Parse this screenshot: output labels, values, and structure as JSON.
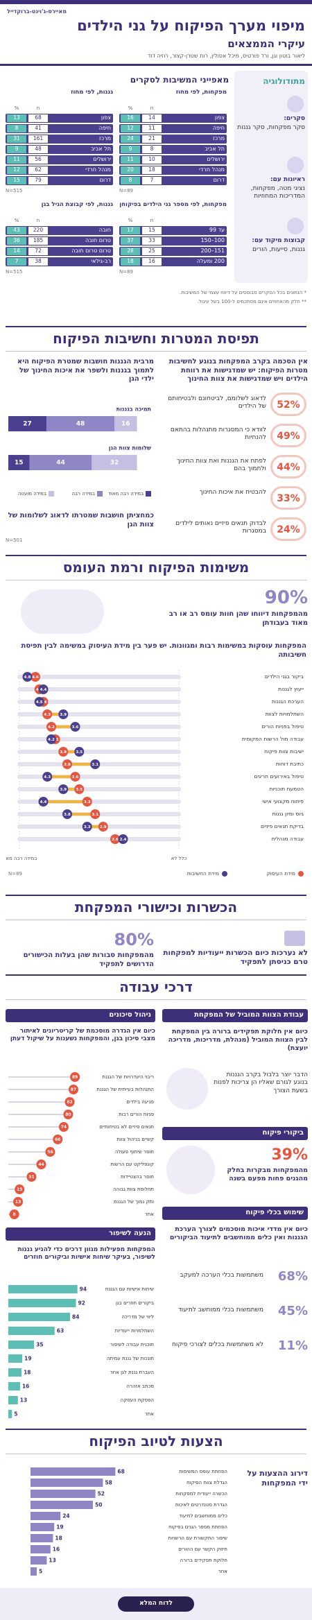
{
  "header": {
    "logo": "מאיירס-ג'וינט-ברוקדייל",
    "title": "מיפוי מערך הפיקוח על גני הילדים",
    "subtitle": "עיקרי הממצאים",
    "authors": "ליאור בוטון וגן, ורד פורטיס, מיכל אסולין, רות שטרן-קצור, רוזיה דוד"
  },
  "methodology": {
    "title": "מתודולוגיה",
    "items": [
      {
        "label": "סקרים:",
        "text": "סקר מפקחות, סקר גננות"
      },
      {
        "label": "ראיונות עם:",
        "text": "נציגי מטה, מפקחות, המדריכות המחוזיות"
      },
      {
        "label": "קבוצות מיקוד עם:",
        "text": "גננות, סייעות, הורים"
      }
    ]
  },
  "respondents": {
    "title": "מאפייני המשיבות לסקרים",
    "columns": [
      "n",
      "%"
    ],
    "tables": [
      {
        "title": "מפקחות, לפי מחוז",
        "rows": [
          [
            "צפון",
            14,
            16
          ],
          [
            "חיפה",
            11,
            12
          ],
          [
            "מרכז",
            21,
            24
          ],
          [
            "תל אביב",
            8,
            9
          ],
          [
            "ירושלים",
            10,
            11
          ],
          [
            "מנהל חרדי",
            18,
            20
          ],
          [
            "דרום",
            7,
            8
          ]
        ],
        "note": "N=89"
      },
      {
        "title": "גננות, לפי מחוז",
        "rows": [
          [
            "צפון",
            68,
            13
          ],
          [
            "חיפה",
            41,
            8
          ],
          [
            "מרכז",
            161,
            31
          ],
          [
            "תל אביב",
            48,
            9
          ],
          [
            "ירושלים",
            56,
            11
          ],
          [
            "מנהל חרדי",
            62,
            12
          ],
          [
            "דרום",
            79,
            15
          ]
        ],
        "note": "N=515"
      },
      {
        "title": "מפקחות, לפי מספר גני הילדים בפיקוחן",
        "rows": [
          [
            "עד 99",
            15,
            17
          ],
          [
            "100–150",
            33,
            37
          ],
          [
            "151–200",
            25,
            28
          ],
          [
            "200 ומעלה",
            16,
            18
          ]
        ],
        "note": "N=89"
      },
      {
        "title": "גננות, לפי קבוצת הגיל בגן",
        "rows": [
          [
            "חובה",
            220,
            43
          ],
          [
            "טרום חובה",
            185,
            36
          ],
          [
            "טרום טרום חובה",
            72,
            14
          ],
          [
            "רב-גילאי",
            38,
            7
          ]
        ],
        "note": "N=515"
      }
    ]
  },
  "footnotes": [
    "* הנתונים בכל הסקרים מבוססים על דיווח עצמי של המשיבות.",
    "** חלק מהאחוזים אינם מסתכמים ל-100 בשל עיגול."
  ],
  "goals": {
    "title": "תפיסת המטרות וחשיבות הפיקוח",
    "supervisors": {
      "intro": "אין הסכמה בקרב המפקחות בנוגע לחשיבות מטרות הפיקוח: יש שמדגישות את רווחת הילדים ויש שמדגישות את צוות החינוך",
      "items": [
        {
          "value": "52%",
          "text": "לדאוג לשלומם, לביטחונם ולבטיחותם של הילדים"
        },
        {
          "value": "49%",
          "text": "לוודא כי המסגרות מתנהלות בהתאם להנחיות"
        },
        {
          "value": "44%",
          "text": "לפתח את הגננות ואת צוות החינוך ולתמוך בהם"
        },
        {
          "value": "33%",
          "text": "להבטיח את איכות החינוך"
        },
        {
          "value": "24%",
          "text": "לבדוק תנאים פיזיים נאותים לילדים במסגרות"
        }
      ]
    },
    "teachers": {
      "intro": "מרבית הגננות חושבות שמטרת הפיקוח היא לתמוך בגננות ולשפר את איכות החינוך של ילדי הגן",
      "chart": {
        "type": "stacked-bar",
        "categories": [
          "תמיכה בגננות",
          "שלומות צוות הגן"
        ],
        "series": [
          {
            "name": "במידה רבה מאוד",
            "color": "#4b3f8f",
            "values": [
              27,
              15
            ]
          },
          {
            "name": "במידה רבה",
            "color": "#8f86c6",
            "values": [
              48,
              44
            ]
          },
          {
            "name": "במידה מועטה",
            "color": "#c4bfe3",
            "values": [
              16,
              32
            ]
          }
        ],
        "xlim": [
          0,
          100
        ],
        "note": "N=501"
      },
      "text2": "כמחציתן חושבות שמטרתו לדאוג לשלומות של צוות הגן"
    }
  },
  "workload": {
    "title": "משימות הפיקוח ורמת העומס",
    "stat": {
      "value": "90%",
      "text": "מהמפקחות דיווחו שהן חוות עומס רב או רב מאוד בעבודתן"
    },
    "intro": "המפקחות עוסקות במשימות רבות ומגוונות. יש פער בין מידת העיסוק במשימה לבין תפיסת חשיבותה",
    "chart": {
      "type": "dumbbell",
      "categories": [
        "ביקור בגני הילדים",
        "ייעוץ לגננות",
        "הערכת הגננות",
        "השתלמויות לצוות",
        "טיפול בפניות הורים",
        "עבודה מול הרשות המקומית",
        "ישיבות צוות פיקוח",
        "כתיבת דוחות",
        "טיפול באירועים חריגים",
        "הטמעת תוכניות",
        "פיתוח מקצועי אישי",
        "גיוס ומיון גננות",
        "בדיקת תנאים פיזיים",
        "עבודה מנהלית"
      ],
      "series": [
        {
          "name": "מידת העיסוק",
          "color": "#e8553f",
          "values": [
            4.6,
            4.5,
            4.4,
            4.3,
            4.2,
            4.1,
            3.9,
            3.8,
            3.6,
            3.5,
            3.3,
            3.1,
            2.9,
            2.6
          ]
        },
        {
          "name": "מידת החשיבות",
          "color": "#4b3f8f",
          "values": [
            4.8,
            4.4,
            4.5,
            3.9,
            3.6,
            4.2,
            3.5,
            3.1,
            4.3,
            3.9,
            4.4,
            3.8,
            3.3,
            2.4
          ]
        }
      ],
      "xlim": [
        1,
        5
      ],
      "xticks": [
        {
          "value": 1,
          "label": "כלל לא"
        },
        {
          "value": 5,
          "label": "במידה רבה מאוד"
        }
      ],
      "note": "N=89"
    }
  },
  "training": {
    "title": "הכשרות וכישורי המפקחת",
    "text": "לא נערכות כיום הכשרות ייעודיות למפקחות טרם כניסתן לתפקיד",
    "stat": {
      "value": "80%",
      "text": "מהמפקחות סבורות שהן בעלות הכישורים הדרושים לתפקיד"
    }
  },
  "methods": {
    "title": "דרכי עבודה",
    "team": {
      "heading": "עבודת הצוות המוביל של המפקחת",
      "text": "כיום אין חלוקת תפקידים ברורה בין המפקחת לבין הצוות המוביל (מנהלת, מדריכות, מדריכה יועצת)",
      "text2": "הדבר יוצר בלבול בקרב הגננות בנוגע לגורם שאליו הן צריכות לפנות בשעת הצורך"
    },
    "visits": {
      "heading": "ביקורי פיקוח",
      "value": "39%",
      "text": "מהמפקחות מבקרות בחלק מהגנים פחות מפעם בשנה"
    },
    "tools": {
      "heading": "שימוש בכלי פיקוח",
      "text": "כיום אין מדדי איכות מוסכמים לצורך הערכת הגננות ואין כלים ממוחשבים לתיעוד הביקורים",
      "stats": [
        {
          "value": "68%",
          "text": "משתמשות בכלי הערכה למעקב"
        },
        {
          "value": "45%",
          "text": "משתמשות בכלי ממוחשב לתיעוד"
        },
        {
          "value": "11%",
          "text": "לא משתמשות בכלים לצורכי פיקוח"
        }
      ]
    },
    "risk": {
      "heading": "ניהול סיכונים",
      "text": "כיום אין הגדרה מוסכמת של קריטריונים לאיתור מצבי סיכון בגן, והמפקחות נשענות על שיקול דעתן",
      "chart": {
        "type": "lollipop",
        "categories": [
          "ריבוי היעדרויות של הגננת",
          "התנהלות בעייתית של הגננת",
          "פגיעה בילדים",
          "פניות הורים רבות",
          "תנאים פיזיים לא בטיחותיים",
          "קשיים בניהול צוות",
          "חוסר שיתוף פעולה",
          "קונפליקט עם הרשות",
          "חוסר בהצטיידות",
          "תחלופת צוות גבוהה",
          "ותק נמוך של הגננת",
          "אחר"
        ],
        "values": [
          89,
          87,
          82,
          80,
          74,
          66,
          56,
          44,
          31,
          15,
          13,
          8
        ],
        "color": "#e8553f",
        "xlim": [
          0,
          100
        ]
      }
    },
    "improvement": {
      "heading": "הנעה לשיפור",
      "text": "המפקחות מפעילות מגוון דרכים כדי להניע גננות לשיפור, בעיקר שיחות אישיות וביקורים חוזרים",
      "chart": {
        "type": "bar",
        "categories": [
          "שיחות אישיות עם הגננת",
          "ביקורים חוזרים בגן",
          "ליווי של מדריכה",
          "השתלמויות ייעודיות",
          "תוכנית עבודה לשיפור",
          "חונכות של גננת עמיתה",
          "העברת גננת לגן אחר",
          "מכתב אזהרה",
          "הפסקת העסקה",
          "אחר"
        ],
        "values": [
          94,
          92,
          84,
          63,
          35,
          19,
          18,
          16,
          13,
          5
        ],
        "color": "#5bbfb5",
        "xlim": [
          0,
          100
        ]
      }
    }
  },
  "suggestions": {
    "title": "הצעות לטיוב הפיקוח",
    "label": "דירוג ההצעות על ידי המפקחות",
    "chart": {
      "type": "bar",
      "categories": [
        "הפחתת עומס המשימות",
        "הגדלת צוות הפיקוח",
        "הכשרה ייעודית למפקחות",
        "הגדרת סטנדרטים לאיכות",
        "כלים ממוחשבים לתיעוד",
        "הפחתת מספר הגנים בפיקוח",
        "שיפור התקשורת עם הרשויות",
        "חיזוק הקשר עם ההורים",
        "חלוקת תפקידים ברורה",
        "אחר"
      ],
      "values": [
        68,
        58,
        52,
        50,
        24,
        19,
        18,
        16,
        13,
        5
      ],
      "color": "#8f86c6",
      "xlim": [
        0,
        100
      ]
    }
  },
  "footer": {
    "button": "לדוח המלא"
  }
}
